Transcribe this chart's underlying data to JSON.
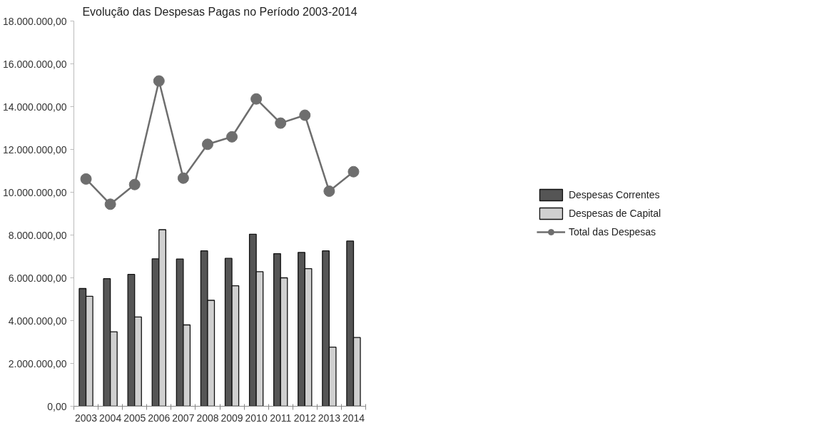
{
  "chart_data": {
    "type": "bar",
    "title": "Evolução das Despesas Pagas no Período 2003-2014",
    "categories": [
      "2003",
      "2004",
      "2005",
      "2006",
      "2007",
      "2008",
      "2009",
      "2010",
      "2011",
      "2012",
      "2013",
      "2014"
    ],
    "series": [
      {
        "name": "Despesas Correntes",
        "color": "#555555",
        "values": [
          5500000,
          5960000,
          6160000,
          6890000,
          6880000,
          7260000,
          6910000,
          8040000,
          7130000,
          7190000,
          7260000,
          7720000
        ]
      },
      {
        "name": "Despesas de Capital",
        "color": "#d0d0d0",
        "values": [
          5140000,
          3480000,
          4170000,
          8250000,
          3800000,
          4950000,
          5630000,
          6290000,
          6000000,
          6430000,
          2760000,
          3210000
        ]
      },
      {
        "name": "Total das Despesas",
        "type": "line",
        "color": "#6e6e6e",
        "values": [
          10620000,
          9440000,
          10360000,
          15200000,
          10660000,
          12240000,
          12590000,
          14360000,
          13230000,
          13600000,
          10050000,
          10960000
        ]
      }
    ],
    "ylim": [
      0,
      18000000
    ],
    "yticks": [
      {
        "value": 0,
        "label": "0,00"
      },
      {
        "value": 2000000,
        "label": "2.000.000,00"
      },
      {
        "value": 4000000,
        "label": "4.000.000,00"
      },
      {
        "value": 6000000,
        "label": "6.000.000,00"
      },
      {
        "value": 8000000,
        "label": "8.000.000,00"
      },
      {
        "value": 10000000,
        "label": "10.000.000,00"
      },
      {
        "value": 12000000,
        "label": "12.000.000,00"
      },
      {
        "value": 14000000,
        "label": "14.000.000,00"
      },
      {
        "value": 16000000,
        "label": "16.000.000,00"
      },
      {
        "value": 18000000,
        "label": "18.000.000,00"
      }
    ],
    "grid": false,
    "legend": "right",
    "marker": "circle"
  }
}
